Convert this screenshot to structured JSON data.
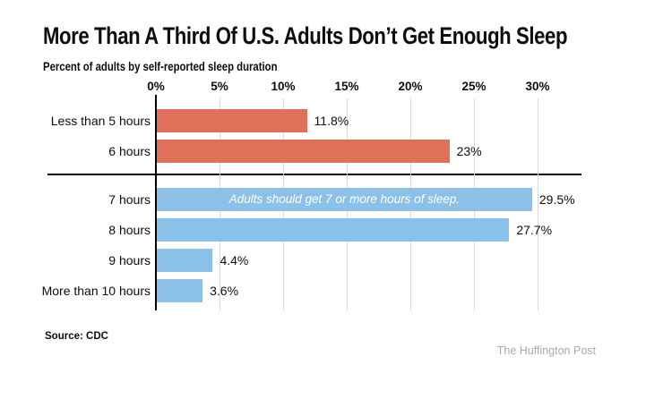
{
  "chart_data": {
    "type": "bar",
    "orientation": "horizontal",
    "title": "More Than A Third Of U.S. Adults Don’t Get Enough Sleep",
    "subtitle": "Percent of adults by self-reported sleep duration",
    "categories": [
      "Less than 5 hours",
      "6 hours",
      "7 hours",
      "8 hours",
      "9 hours",
      "More than 10 hours"
    ],
    "values": [
      11.8,
      23,
      29.5,
      27.7,
      4.4,
      3.6
    ],
    "value_labels": [
      "11.8%",
      "23%",
      "29.5%",
      "27.7%",
      "4.4%",
      "3.6%"
    ],
    "groups": [
      "not_enough_sleep",
      "not_enough_sleep",
      "enough_sleep",
      "enough_sleep",
      "enough_sleep",
      "enough_sleep"
    ],
    "bar_colors": {
      "not_enough_sleep": "#e0705a",
      "enough_sleep": "#8bc1e8"
    },
    "x_ticks": [
      "0%",
      "5%",
      "10%",
      "15%",
      "20%",
      "25%",
      "30%"
    ],
    "x_tick_values": [
      0,
      5,
      10,
      15,
      20,
      25,
      30
    ],
    "xlim": [
      0,
      30
    ],
    "grid": true,
    "legend": false,
    "grid_color": "#d9d9d9",
    "axis_color": "#000000",
    "annotation": {
      "text": "Adults should get 7 or more hours of sleep.",
      "category": "7 hours"
    },
    "divider_note": "horizontal rule separating bars below 7 hours from 7+ hours",
    "source": "Source: CDC",
    "credit": "The Huffington Post"
  }
}
